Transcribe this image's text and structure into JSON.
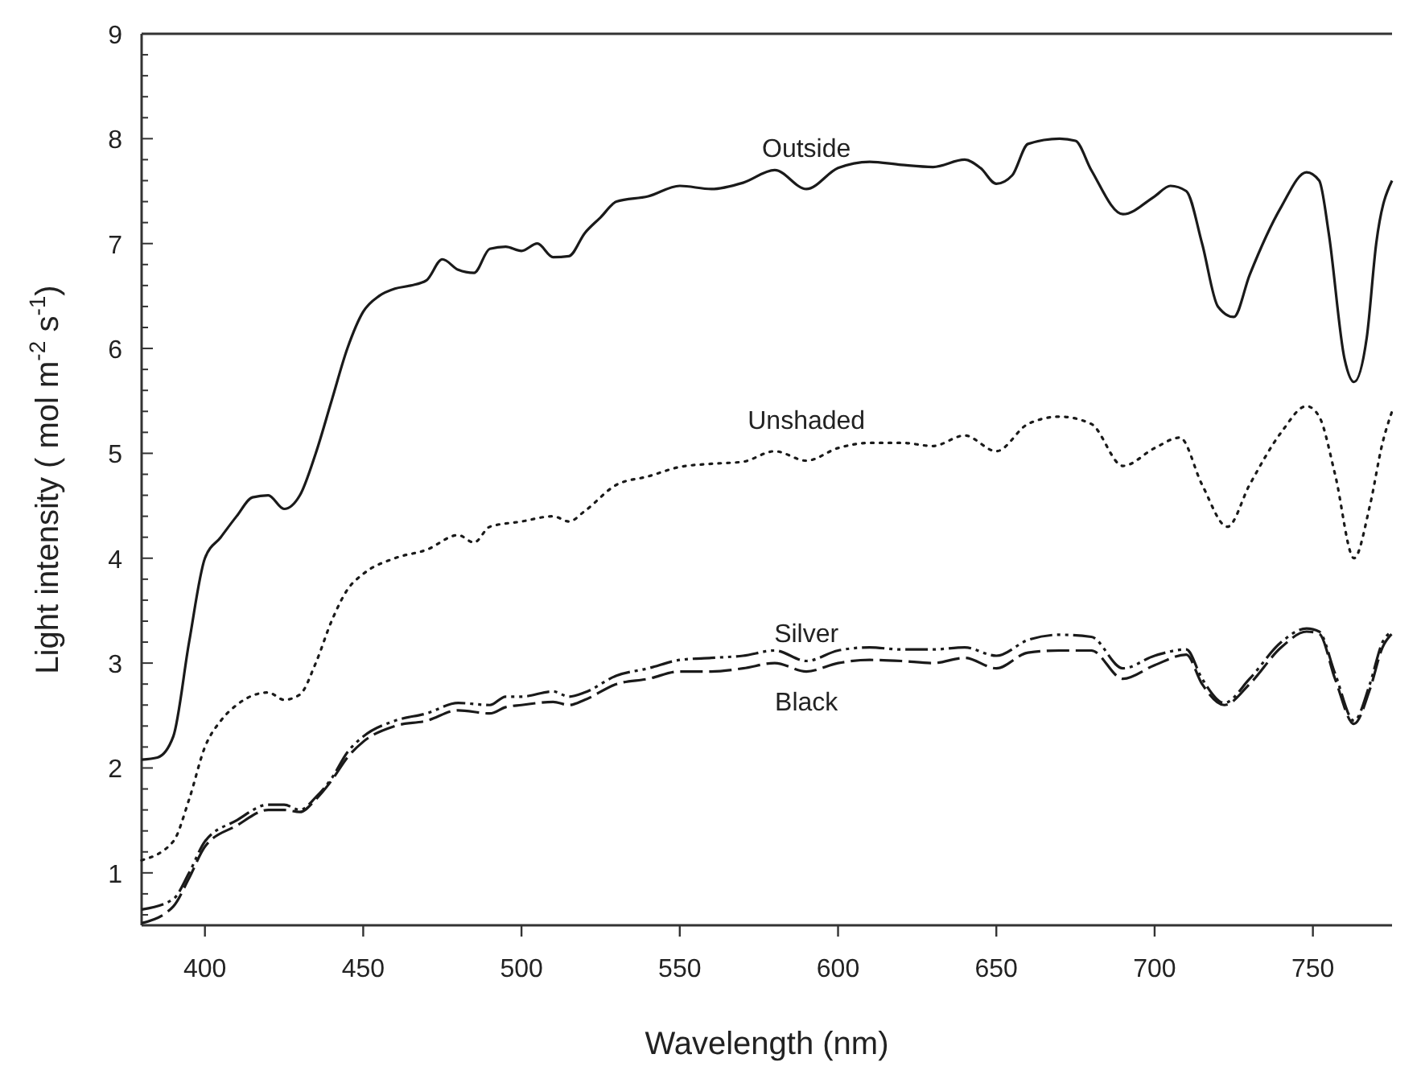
{
  "chart_data": {
    "type": "line",
    "xlabel": "Wavelength (nm)",
    "ylabel": "Light intensity ( mol m$^{-2}$ s$^{-1}$)",
    "xlim": [
      380,
      775
    ],
    "xticks": [
      400,
      450,
      500,
      550,
      600,
      650,
      700,
      750
    ],
    "ylim": [
      0.5,
      9
    ],
    "yticks": [
      {
        "value": 0.6,
        "label": null
      },
      {
        "value": 0.8,
        "label": null
      },
      1,
      {
        "value": 1.2,
        "label": null
      },
      {
        "value": 1.4,
        "label": null
      },
      {
        "value": 1.6,
        "label": null
      },
      {
        "value": 1.8,
        "label": null
      },
      2,
      {
        "value": 2.2,
        "label": null
      },
      {
        "value": 2.4,
        "label": null
      },
      {
        "value": 2.6,
        "label": null
      },
      {
        "value": 2.8,
        "label": null
      },
      3,
      {
        "value": 3.2,
        "label": null
      },
      {
        "value": 3.4,
        "label": null
      },
      {
        "value": 3.6,
        "label": null
      },
      {
        "value": 3.8,
        "label": null
      },
      4,
      {
        "value": 4.2,
        "label": null
      },
      {
        "value": 4.4,
        "label": null
      },
      {
        "value": 4.6,
        "label": null
      },
      {
        "value": 4.8,
        "label": null
      },
      5,
      {
        "value": 5.2,
        "label": null
      },
      {
        "value": 5.4,
        "label": null
      },
      {
        "value": 5.6,
        "label": null
      },
      {
        "value": 5.8,
        "label": null
      },
      6,
      {
        "value": 6.2,
        "label": null
      },
      {
        "value": 6.4,
        "label": null
      },
      {
        "value": 6.6,
        "label": null
      },
      {
        "value": 6.8,
        "label": null
      },
      7,
      {
        "value": 7.2,
        "label": null
      },
      {
        "value": 7.4,
        "label": null
      },
      {
        "value": 7.6,
        "label": null
      },
      {
        "value": 7.8,
        "label": null
      },
      8,
      {
        "value": 8.2,
        "label": null
      },
      {
        "value": 8.4,
        "label": null
      },
      {
        "value": 8.6,
        "label": null
      },
      {
        "value": 8.8,
        "label": null
      },
      9
    ],
    "grid": false,
    "marker": "none",
    "series": [
      {
        "name": "Outside",
        "color": "#1a1a1a",
        "line_style": "solid",
        "x": [
          380,
          385,
          390,
          395,
          400,
          405,
          410,
          415,
          420,
          425,
          430,
          435,
          440,
          445,
          450,
          455,
          460,
          465,
          470,
          475,
          480,
          485,
          490,
          495,
          500,
          505,
          510,
          515,
          520,
          525,
          530,
          540,
          550,
          560,
          570,
          580,
          590,
          600,
          610,
          620,
          630,
          640,
          645,
          650,
          655,
          660,
          670,
          675,
          680,
          690,
          700,
          705,
          710,
          715,
          720,
          725,
          730,
          740,
          748,
          752,
          755,
          760,
          763,
          767,
          770,
          775
        ],
        "values": [
          2.08,
          2.1,
          2.3,
          3.2,
          4.0,
          4.2,
          4.4,
          4.58,
          4.6,
          4.47,
          4.6,
          5.0,
          5.5,
          6.0,
          6.35,
          6.5,
          6.57,
          6.6,
          6.65,
          6.85,
          6.75,
          6.72,
          6.95,
          6.97,
          6.93,
          7.0,
          6.87,
          6.88,
          7.1,
          7.25,
          7.4,
          7.45,
          7.55,
          7.52,
          7.58,
          7.7,
          7.52,
          7.72,
          7.78,
          7.75,
          7.73,
          7.8,
          7.72,
          7.57,
          7.65,
          7.95,
          8.0,
          7.98,
          7.7,
          7.28,
          7.45,
          7.55,
          7.5,
          7.0,
          6.4,
          6.3,
          6.7,
          7.35,
          7.68,
          7.6,
          7.1,
          5.9,
          5.68,
          6.1,
          7.0,
          7.6
        ]
      },
      {
        "name": "Unshaded",
        "color": "#1a1a1a",
        "line_style": "dotted",
        "x": [
          380,
          390,
          395,
          400,
          405,
          410,
          420,
          425,
          430,
          435,
          440,
          445,
          450,
          460,
          470,
          480,
          485,
          490,
          500,
          510,
          515,
          520,
          530,
          540,
          550,
          560,
          570,
          580,
          590,
          600,
          610,
          620,
          630,
          640,
          650,
          660,
          670,
          680,
          690,
          700,
          708,
          715,
          723,
          730,
          740,
          748,
          752,
          757,
          763,
          768,
          772,
          775
        ],
        "values": [
          1.12,
          1.3,
          1.7,
          2.2,
          2.45,
          2.6,
          2.72,
          2.65,
          2.7,
          3.0,
          3.4,
          3.7,
          3.85,
          4.0,
          4.08,
          4.22,
          4.15,
          4.3,
          4.35,
          4.4,
          4.35,
          4.45,
          4.7,
          4.78,
          4.87,
          4.9,
          4.92,
          5.02,
          4.93,
          5.05,
          5.1,
          5.1,
          5.07,
          5.17,
          5.02,
          5.28,
          5.35,
          5.28,
          4.88,
          5.05,
          5.15,
          4.7,
          4.3,
          4.7,
          5.2,
          5.45,
          5.35,
          4.8,
          4.0,
          4.5,
          5.1,
          5.4
        ]
      },
      {
        "name": "Silver",
        "color": "#1a1a1a",
        "line_style": "dashdot",
        "x": [
          380,
          390,
          395,
          400,
          410,
          420,
          425,
          430,
          435,
          440,
          445,
          450,
          460,
          470,
          480,
          490,
          495,
          500,
          510,
          515,
          520,
          530,
          540,
          550,
          560,
          570,
          580,
          590,
          600,
          610,
          620,
          630,
          640,
          650,
          660,
          670,
          680,
          690,
          700,
          710,
          715,
          722,
          730,
          740,
          748,
          752,
          757,
          763,
          768,
          772,
          775
        ],
        "values": [
          0.65,
          0.75,
          1.0,
          1.3,
          1.5,
          1.65,
          1.65,
          1.6,
          1.72,
          1.9,
          2.15,
          2.3,
          2.45,
          2.52,
          2.62,
          2.6,
          2.68,
          2.68,
          2.73,
          2.68,
          2.72,
          2.88,
          2.95,
          3.03,
          3.05,
          3.07,
          3.12,
          3.02,
          3.12,
          3.15,
          3.13,
          3.13,
          3.15,
          3.07,
          3.22,
          3.27,
          3.25,
          2.95,
          3.07,
          3.13,
          2.85,
          2.62,
          2.85,
          3.2,
          3.33,
          3.3,
          2.9,
          2.45,
          2.8,
          3.2,
          3.3
        ]
      },
      {
        "name": "Black",
        "color": "#1a1a1a",
        "line_style": "dashed",
        "x": [
          380,
          390,
          395,
          400,
          410,
          420,
          425,
          430,
          435,
          440,
          445,
          450,
          460,
          470,
          480,
          490,
          495,
          500,
          510,
          515,
          520,
          530,
          540,
          550,
          560,
          570,
          580,
          590,
          600,
          610,
          620,
          630,
          640,
          650,
          660,
          670,
          680,
          690,
          700,
          710,
          715,
          722,
          730,
          740,
          748,
          752,
          757,
          763,
          768,
          772,
          775
        ],
        "values": [
          0.52,
          0.68,
          0.95,
          1.25,
          1.45,
          1.6,
          1.6,
          1.58,
          1.7,
          1.88,
          2.1,
          2.25,
          2.4,
          2.45,
          2.55,
          2.52,
          2.58,
          2.6,
          2.63,
          2.6,
          2.65,
          2.8,
          2.85,
          2.92,
          2.92,
          2.95,
          3.0,
          2.92,
          3.0,
          3.03,
          3.02,
          3.0,
          3.05,
          2.95,
          3.1,
          3.12,
          3.12,
          2.85,
          2.98,
          3.08,
          2.8,
          2.6,
          2.8,
          3.15,
          3.3,
          3.28,
          2.85,
          2.42,
          2.75,
          3.15,
          3.28
        ]
      }
    ]
  }
}
